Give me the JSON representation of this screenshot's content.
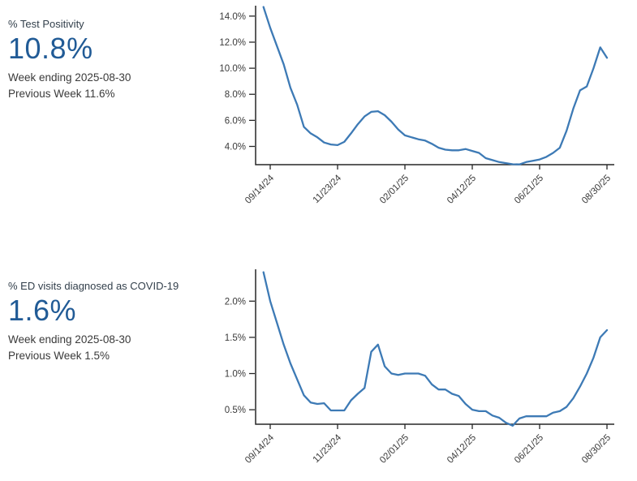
{
  "colors": {
    "background": "#ffffff",
    "line": "#3d7ab5",
    "axis": "#262626",
    "tick_text": "#3a3a3a",
    "value_text": "#215b96",
    "label_text": "#323f4b",
    "meta_text": "#3a3a3a"
  },
  "panels": [
    {
      "label": "% Test Positivity",
      "value": "10.8%",
      "week_ending": "Week ending 2025-08-30",
      "previous_week": "Previous Week 11.6%"
    },
    {
      "label": "% ED visits diagnosed as COVID-19",
      "value": "1.6%",
      "week_ending": "Week ending 2025-08-30",
      "previous_week": "Previous Week 1.5%"
    }
  ],
  "chart_data": [
    {
      "type": "line",
      "title": "% Test Positivity",
      "x_tick_labels": [
        "09/14/24",
        "11/23/24",
        "02/01/25",
        "04/12/25",
        "06/21/25",
        "08/30/25"
      ],
      "x_tick_indices": [
        1,
        11,
        21,
        31,
        41,
        51
      ],
      "x_unit": "week",
      "y_ticks": [
        4,
        6,
        8,
        10,
        12,
        14
      ],
      "y_tick_labels": [
        "4.0%",
        "6.0%",
        "8.0%",
        "10.0%",
        "12.0%",
        "14.0%"
      ],
      "ylim": [
        2.6,
        14.8
      ],
      "grid": false,
      "legend": "none",
      "line_color": "#3d7ab5",
      "series": [
        {
          "name": "% Test Positivity",
          "values": [
            14.7,
            13.1,
            11.7,
            10.3,
            8.5,
            7.2,
            5.5,
            5.0,
            4.7,
            4.3,
            4.15,
            4.1,
            4.35,
            5.0,
            5.7,
            6.3,
            6.65,
            6.7,
            6.4,
            5.9,
            5.3,
            4.85,
            4.7,
            4.55,
            4.45,
            4.2,
            3.9,
            3.75,
            3.7,
            3.7,
            3.8,
            3.65,
            3.5,
            3.1,
            2.95,
            2.8,
            2.72,
            2.63,
            2.62,
            2.8,
            2.9,
            3.0,
            3.2,
            3.5,
            3.9,
            5.2,
            6.9,
            8.3,
            8.6,
            10.0,
            11.6,
            10.8
          ]
        }
      ]
    },
    {
      "type": "line",
      "title": "% ED visits diagnosed as COVID-19",
      "x_tick_labels": [
        "09/14/24",
        "11/23/24",
        "02/01/25",
        "04/12/25",
        "06/21/25",
        "08/30/25"
      ],
      "x_tick_indices": [
        1,
        11,
        21,
        31,
        41,
        51
      ],
      "x_unit": "week",
      "y_ticks": [
        0.5,
        1.0,
        1.5,
        2.0
      ],
      "y_tick_labels": [
        "0.5%",
        "1.0%",
        "1.5%",
        "2.0%"
      ],
      "ylim": [
        0.3,
        2.44
      ],
      "grid": false,
      "legend": "none",
      "line_color": "#3d7ab5",
      "series": [
        {
          "name": "% ED visits diagnosed as COVID-19",
          "values": [
            2.4,
            2.0,
            1.7,
            1.4,
            1.14,
            0.92,
            0.7,
            0.6,
            0.58,
            0.59,
            0.49,
            0.49,
            0.49,
            0.63,
            0.72,
            0.8,
            1.3,
            1.4,
            1.1,
            1.0,
            0.98,
            1.0,
            1.0,
            1.0,
            0.97,
            0.85,
            0.78,
            0.78,
            0.72,
            0.69,
            0.58,
            0.5,
            0.48,
            0.48,
            0.42,
            0.39,
            0.32,
            0.28,
            0.38,
            0.41,
            0.41,
            0.41,
            0.41,
            0.46,
            0.48,
            0.54,
            0.66,
            0.82,
            1.0,
            1.22,
            1.5,
            1.6
          ]
        }
      ]
    }
  ]
}
